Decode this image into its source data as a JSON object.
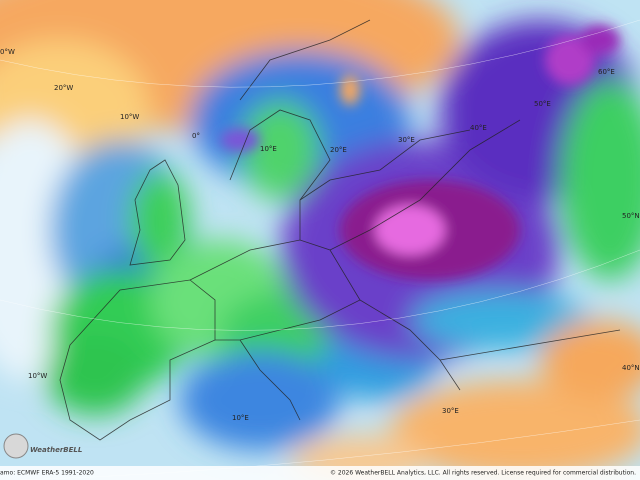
{
  "map": {
    "labels": [
      "0°W",
      "20°W",
      "10°W",
      "0°",
      "10°E",
      "20°E",
      "30°E",
      "40°E",
      "50°E",
      "60°E",
      "50°N",
      "40°N",
      "10°W",
      "10°E",
      "30°E"
    ],
    "logo": "WeatherBELL",
    "footer_left": "amo: ECMWF ERA-5 1991-2020",
    "footer_right": "© 2026 WeatherBELL Analytics, LLC. All rights reserved. License required for commercial distribution."
  }
}
